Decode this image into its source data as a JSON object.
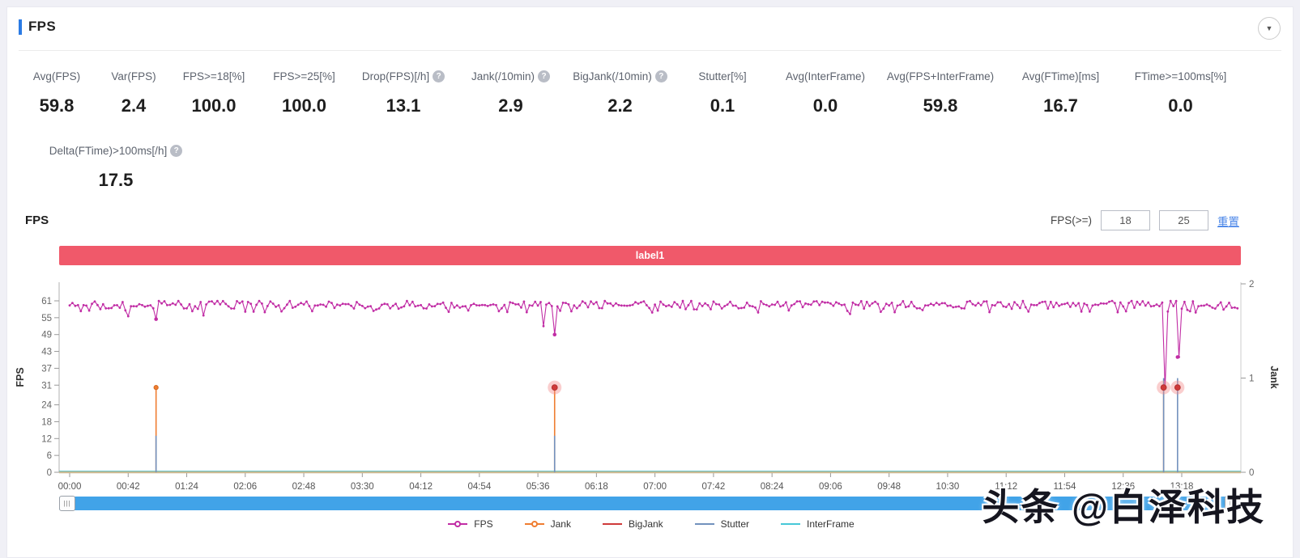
{
  "header": {
    "title": "FPS",
    "collapse_icon": "▼"
  },
  "stats": {
    "row1": [
      {
        "label": "Avg(FPS)",
        "value": "59.8",
        "help": false
      },
      {
        "label": "Var(FPS)",
        "value": "2.4",
        "help": false
      },
      {
        "label": "FPS>=18[%]",
        "value": "100.0",
        "help": false
      },
      {
        "label": "FPS>=25[%]",
        "value": "100.0",
        "help": false
      },
      {
        "label": "Drop(FPS)[/h]",
        "value": "13.1",
        "help": true
      },
      {
        "label": "Jank(/10min)",
        "value": "2.9",
        "help": true
      },
      {
        "label": "BigJank(/10min)",
        "value": "2.2",
        "help": true
      },
      {
        "label": "Stutter[%]",
        "value": "0.1",
        "help": false
      },
      {
        "label": "Avg(InterFrame)",
        "value": "0.0",
        "help": false
      },
      {
        "label": "Avg(FPS+InterFrame)",
        "value": "59.8",
        "help": false
      },
      {
        "label": "Avg(FTime)[ms]",
        "value": "16.7",
        "help": false
      },
      {
        "label": "FTime>=100ms[%]",
        "value": "0.0",
        "help": false
      }
    ],
    "row2": [
      {
        "label": "Delta(FTime)>100ms[/h]",
        "value": "17.5",
        "help": true
      }
    ]
  },
  "chart_section": {
    "title": "FPS",
    "filter_label": "FPS(>=)",
    "filter_values": [
      "18",
      "25"
    ],
    "reset_label": "重置",
    "banner_text": "label1",
    "banner_color": "#f0596a",
    "help_glyph": "?"
  },
  "chart_data": {
    "type": "line",
    "title": "label1",
    "ylabel_left": "FPS",
    "ylabel_right": "Jank",
    "xlabel": "",
    "x_ticks": [
      "00:00",
      "00:42",
      "01:24",
      "02:06",
      "02:48",
      "03:30",
      "04:12",
      "04:54",
      "05:36",
      "06:18",
      "07:00",
      "07:42",
      "08:24",
      "09:06",
      "09:48",
      "10:30",
      "11:12",
      "11:54",
      "12:36",
      "13:18"
    ],
    "x_tick_seconds": [
      0,
      42,
      84,
      126,
      168,
      210,
      252,
      294,
      336,
      378,
      420,
      462,
      504,
      546,
      588,
      630,
      672,
      714,
      756,
      798
    ],
    "x_range_seconds": [
      0,
      838
    ],
    "y_left_ticks": [
      0,
      6,
      12,
      18,
      24,
      31,
      37,
      43,
      49,
      55,
      61
    ],
    "y_left_range": [
      0,
      61
    ],
    "y_right_ticks": [
      0,
      1,
      2
    ],
    "y_right_range": [
      0,
      2
    ],
    "grid": false,
    "legend_position": "bottom",
    "fps_baseline": 59.8,
    "fps_noise_band": [
      56.8,
      61
    ],
    "noise_seed": 11,
    "sample_step_seconds": 2,
    "minor_dips": [
      {
        "time_s": 41,
        "fps": 55.5
      },
      {
        "time_s": 96,
        "fps": 55.8
      },
      {
        "time_s": 340,
        "fps": 52.0
      },
      {
        "time_s": 560,
        "fps": 56.3
      }
    ],
    "events": [
      {
        "time_s": 62,
        "fps": 54.5,
        "jank": 1,
        "bigjank": 0,
        "stutter_fps": 13
      },
      {
        "time_s": 348,
        "fps": 49,
        "jank": 1,
        "bigjank": 1,
        "stutter_fps": 13
      },
      {
        "time_s": 785,
        "fps": 30,
        "jank": 1,
        "bigjank": 1,
        "stutter_fps": 33.5
      },
      {
        "time_s": 795,
        "fps": 41,
        "jank": 0,
        "bigjank": 1,
        "stutter_fps": 33.5
      }
    ],
    "legend": [
      {
        "name": "FPS",
        "color": "#c12da5",
        "marker": true
      },
      {
        "name": "Jank",
        "color": "#ef7d31",
        "marker": true
      },
      {
        "name": "BigJank",
        "color": "#cf3a3a",
        "marker": false
      },
      {
        "name": "Stutter",
        "color": "#7291bd",
        "marker": false
      },
      {
        "name": "InterFrame",
        "color": "#46c8d8",
        "marker": false
      }
    ],
    "colors": {
      "bigjank_halo": "#f28b8b",
      "axis_line": "#c9ba93",
      "axis_gray": "#cccccc"
    }
  },
  "scrollbar": {
    "grip": "|||"
  },
  "watermark": {
    "text": "头条 @白泽科技"
  }
}
